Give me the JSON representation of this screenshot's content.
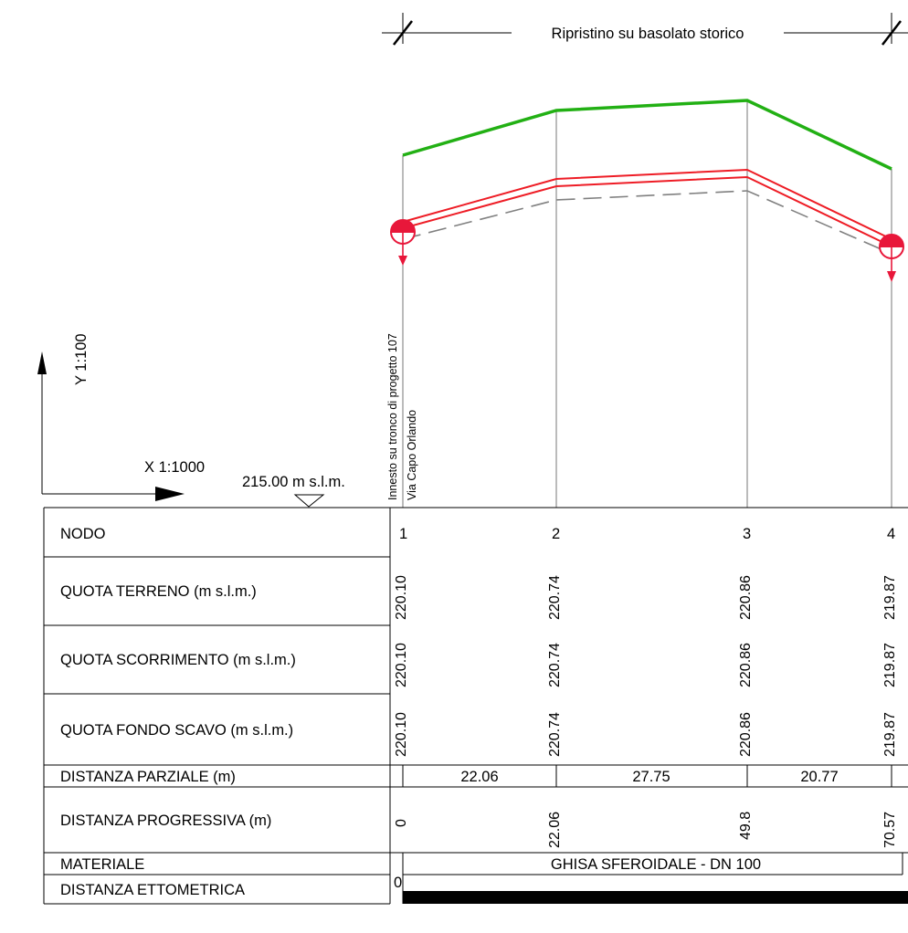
{
  "header": {
    "label": "Ripristino su basolato storico"
  },
  "axes": {
    "y_scale": "Y 1:100",
    "x_scale": "X 1:1000",
    "datum": "215.00 m s.l.m."
  },
  "annotation": {
    "line1": "Innesto su tronco di progetto 107",
    "line2": "Via Capo Orlando"
  },
  "colors": {
    "terrain": "#22b014",
    "pipe": "#ee1c25",
    "excavation": "#808080",
    "node_marker": "#e8173a",
    "ettometric_bar": "#000000"
  },
  "table": {
    "rows": {
      "nodo": "NODO",
      "quota_terreno": "QUOTA TERRENO (m s.l.m.)",
      "quota_scorrimento": "QUOTA SCORRIMENTO (m s.l.m.)",
      "quota_fondo_scavo": "QUOTA FONDO SCAVO (m s.l.m.)",
      "distanza_parziale": "DISTANZA PARZIALE (m)",
      "distanza_progressiva": "DISTANZA PROGRESSIVA (m)",
      "materiale": "MATERIALE",
      "distanza_ettometrica": "DISTANZA ETTOMETRICA"
    },
    "nodes": [
      {
        "id": "1",
        "quota_terreno": "220.10",
        "quota_scorrimento": "220.10",
        "quota_fondo_scavo": "220.10",
        "progressiva": "0"
      },
      {
        "id": "2",
        "quota_terreno": "220.74",
        "quota_scorrimento": "220.74",
        "quota_fondo_scavo": "220.74",
        "progressiva": "22.06"
      },
      {
        "id": "3",
        "quota_terreno": "220.86",
        "quota_scorrimento": "220.86",
        "quota_fondo_scavo": "220.86",
        "progressiva": "49.8"
      },
      {
        "id": "4",
        "quota_terreno": "219.87",
        "quota_scorrimento": "219.87",
        "quota_fondo_scavo": "219.87",
        "progressiva": "70.57"
      }
    ],
    "partial_distances": [
      "22.06",
      "27.75",
      "20.77"
    ],
    "material": "GHISA SFEROIDALE - DN 100",
    "ettometric_start": "0"
  }
}
